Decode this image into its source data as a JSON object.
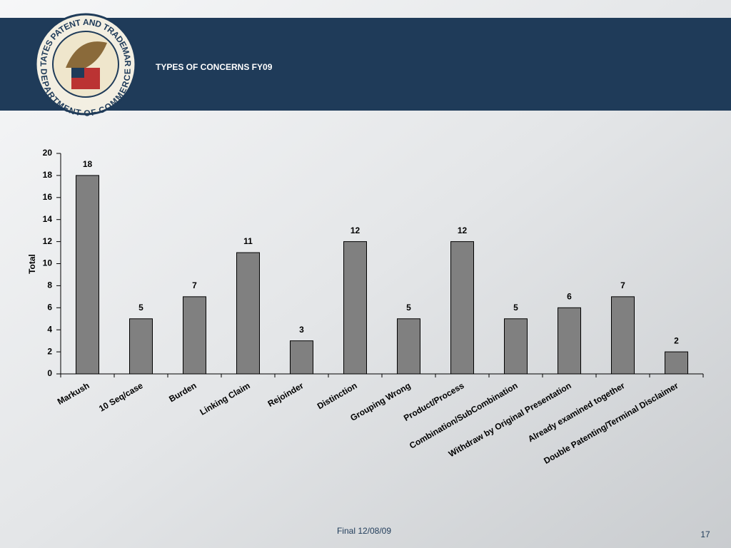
{
  "seal": {
    "top_text": "UNITED STATES PATENT AND TRADEMARK OFFICE",
    "bottom_text": "DEPARTMENT OF COMMERCE"
  },
  "chart_data": {
    "type": "bar",
    "title": "TYPES OF CONCERNS FY09",
    "y_label": "Total",
    "categories": [
      "Markush",
      "10 Seq/case",
      "Burden",
      "Linking Claim",
      "Rejoinder",
      "Distinction",
      "Grouping Wrong",
      "Product/Process",
      "Combination/SubCombination",
      "Withdraw by Original Presentation",
      "Already examined together",
      "Double Patenting/Terminal Disclaimer"
    ],
    "values": [
      18,
      5,
      7,
      11,
      3,
      12,
      5,
      12,
      5,
      6,
      7,
      2
    ],
    "color": "#808080",
    "ylim": [
      0,
      20
    ],
    "yticks": [
      0,
      2,
      4,
      6,
      8,
      10,
      12,
      14,
      16,
      18,
      20
    ],
    "grid": false
  },
  "footer": {
    "note": "Final 12/08/09",
    "page": "17"
  }
}
